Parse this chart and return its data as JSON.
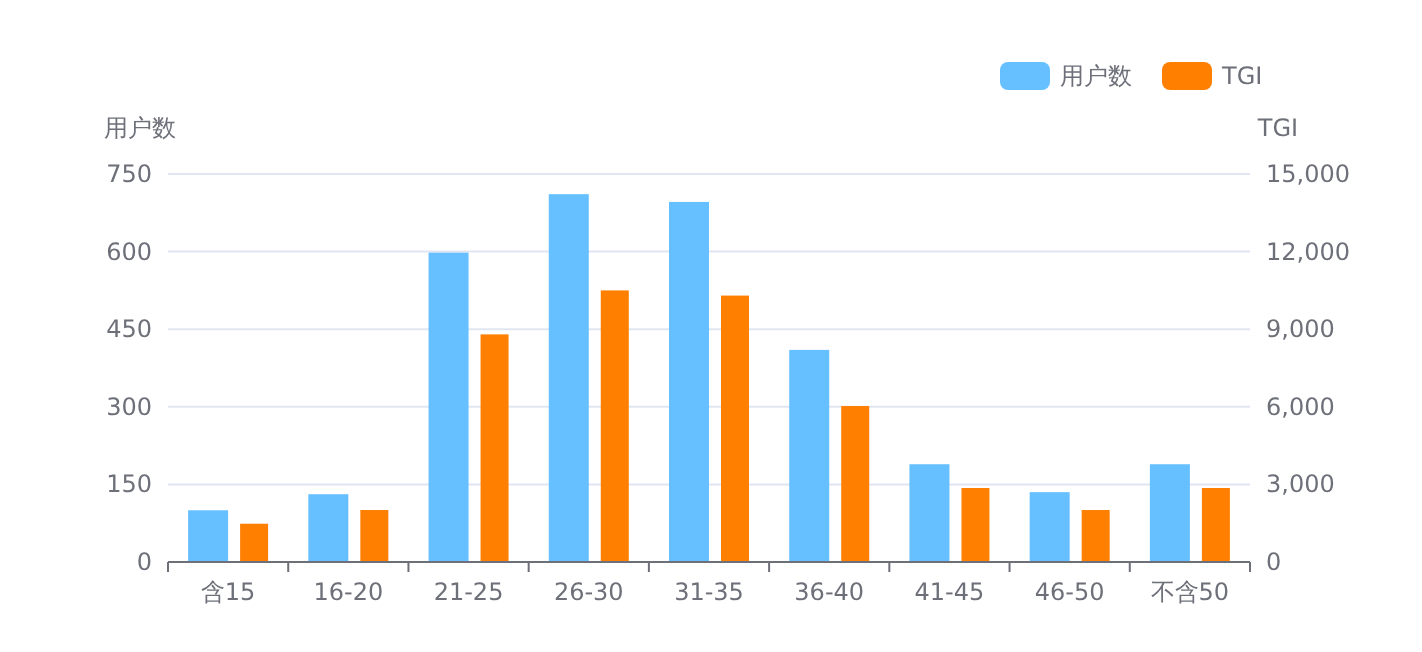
{
  "chart_data": {
    "type": "bar",
    "categories": [
      "含15",
      "16-20",
      "21-25",
      "26-30",
      "31-35",
      "36-40",
      "41-45",
      "46-50",
      "不含50"
    ],
    "ylabel": "用户数",
    "y2label": "TGI",
    "ylim": [
      0,
      750
    ],
    "yticks": [
      0,
      150,
      300,
      450,
      600,
      750
    ],
    "y2lim": [
      0,
      15000
    ],
    "y2ticks": [
      0,
      {
        "value": 3000,
        "label": "3,000"
      },
      {
        "value": 6000,
        "label": "6,000"
      },
      {
        "value": 9000,
        "label": "9,000"
      },
      {
        "value": 12000,
        "label": "12,000"
      },
      {
        "value": 15000,
        "label": "15,000"
      }
    ],
    "grid": "y",
    "legend": "top right",
    "series": [
      {
        "name": "用户数",
        "color": "#66bfff",
        "values": [
          100,
          131,
          598,
          711,
          696,
          410,
          189,
          135,
          189
        ]
      },
      {
        "name": "TGI",
        "color": "#ff7f00",
        "axis": "y2",
        "values": [
          1480,
          2010,
          8800,
          10500,
          10300,
          6030,
          2860,
          2010,
          2860
        ]
      }
    ]
  }
}
